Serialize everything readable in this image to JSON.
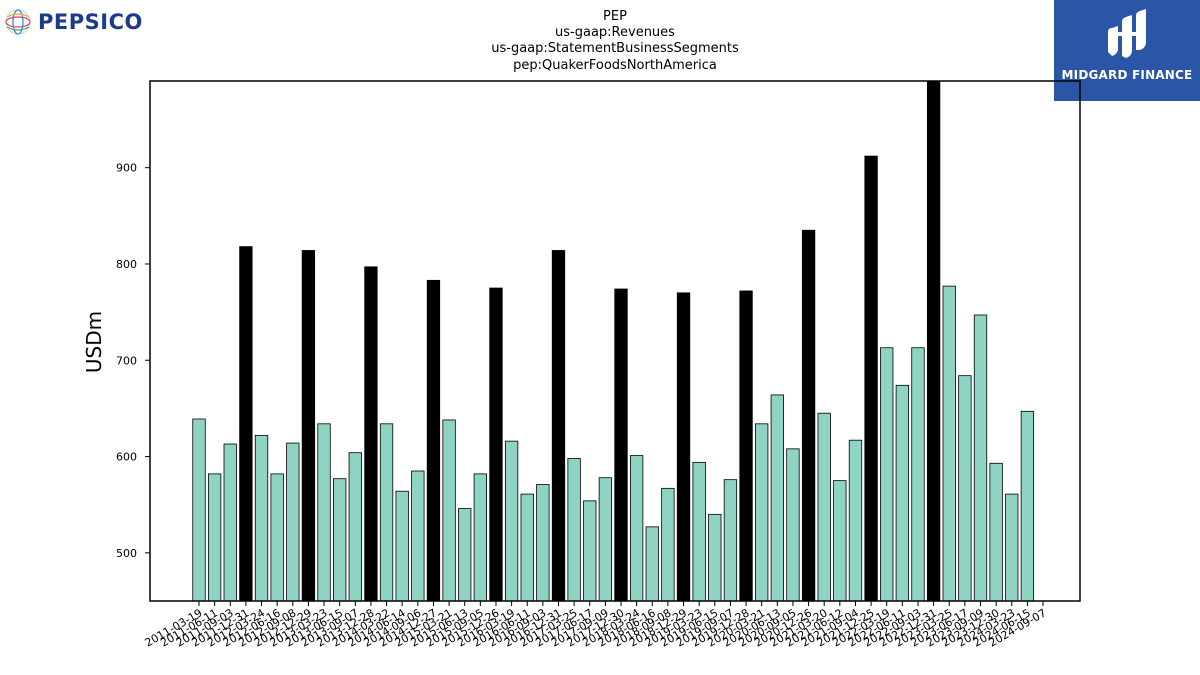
{
  "brand": {
    "name": "PEPSICO"
  },
  "watermark": {
    "name": "MIDGARD FINANCE"
  },
  "colors": {
    "normal_bar": "#8fd3c5",
    "annual_bar": "#000000",
    "bar_edge": "#000000"
  },
  "chart_data": {
    "type": "bar",
    "title_lines": [
      "PEP",
      "us-gaap:Revenues",
      "us-gaap:StatementBusinessSegments",
      "pep:QuakerFoodsNorthAmerica"
    ],
    "xlabel": "",
    "ylabel": "USDm",
    "ylim": [
      450,
      990
    ],
    "yticks": [
      500,
      600,
      700,
      800,
      900
    ],
    "grid": false,
    "categories": [
      "2011-03-19",
      "2011-06-11",
      "2011-09-03",
      "2011-12-31",
      "2012-03-24",
      "2012-06-16",
      "2012-09-08",
      "2012-12-29",
      "2013-03-23",
      "2013-06-15",
      "2013-09-07",
      "2013-12-28",
      "2014-03-22",
      "2014-06-14",
      "2014-09-06",
      "2014-12-27",
      "2015-03-21",
      "2015-06-13",
      "2015-09-05",
      "2015-12-26",
      "2016-03-19",
      "2016-06-11",
      "2016-09-03",
      "2016-12-31",
      "2017-03-25",
      "2017-06-17",
      "2017-09-09",
      "2017-12-30",
      "2018-03-24",
      "2018-06-16",
      "2018-09-08",
      "2018-12-29",
      "2019-03-23",
      "2019-06-15",
      "2019-09-07",
      "2019-12-28",
      "2020-03-21",
      "2020-06-13",
      "2020-09-05",
      "2020-12-26",
      "2021-03-20",
      "2021-06-12",
      "2021-09-04",
      "2021-12-25",
      "2022-03-19",
      "2022-06-11",
      "2022-09-03",
      "2022-12-31",
      "2023-03-25",
      "2023-06-17",
      "2023-09-09",
      "2023-12-30",
      "2024-03-23",
      "2024-06-15",
      "2024-09-07"
    ],
    "x_tick_labels": [
      "2011-03-19",
      "2011-06-11",
      "2011-09-03",
      "2011-12-31",
      "2012-03-24",
      "2012-06-16",
      "2012-09-08",
      "2012-12-29",
      "2013-03-23",
      "2013-06-15",
      "2013-09-07",
      "2013-12-28",
      "2014-03-22",
      "2014-06-14",
      "2014-09-06",
      "2014-12-27",
      "2015-03-21",
      "2015-06-13",
      "2015-09-05",
      "2015-12-26",
      "2016-03-19",
      "2016-06-11",
      "2016-09-03",
      "2016-12-31",
      "2017-03-25",
      "2017-06-17",
      "2017-09-09",
      "2017-12-30",
      "2018-03-24",
      "2018-06-16",
      "2018-09-08",
      "2018-12-29",
      "2019-03-23",
      "2019-06-15",
      "2019-09-07",
      "2019-12-28",
      "2020-03-21",
      "2020-06-13",
      "2020-09-05",
      "2020-12-26",
      "2021-03-20",
      "2021-06-12",
      "2021-09-04",
      "2021-12-25",
      "2022-03-19",
      "2022-06-11",
      "2022-09-03",
      "2022-12-31",
      "2023-03-25",
      "2023-06-17",
      "2023-09-09",
      "2023-12-30",
      "2024-03-23",
      "2024-06-15",
      "2024-09-07"
    ],
    "values": [
      639,
      582,
      613,
      818,
      622,
      582,
      614,
      814,
      634,
      577,
      604,
      797,
      634,
      564,
      585,
      783,
      638,
      546,
      582,
      775,
      616,
      561,
      571,
      814,
      598,
      554,
      578,
      774,
      601,
      527,
      567,
      770,
      594,
      540,
      576,
      772,
      634,
      664,
      608,
      835,
      645,
      575,
      617,
      912,
      713,
      674,
      713,
      990,
      777,
      684,
      747,
      593,
      561,
      647,
      null
    ],
    "annual_flags": [
      false,
      false,
      false,
      true,
      false,
      false,
      false,
      true,
      false,
      false,
      false,
      true,
      false,
      false,
      false,
      true,
      false,
      false,
      false,
      true,
      false,
      false,
      false,
      true,
      false,
      false,
      false,
      true,
      false,
      false,
      false,
      true,
      false,
      false,
      false,
      true,
      false,
      false,
      false,
      true,
      false,
      false,
      false,
      true,
      false,
      false,
      false,
      true,
      false,
      false,
      false,
      false,
      false,
      false,
      false
    ]
  }
}
